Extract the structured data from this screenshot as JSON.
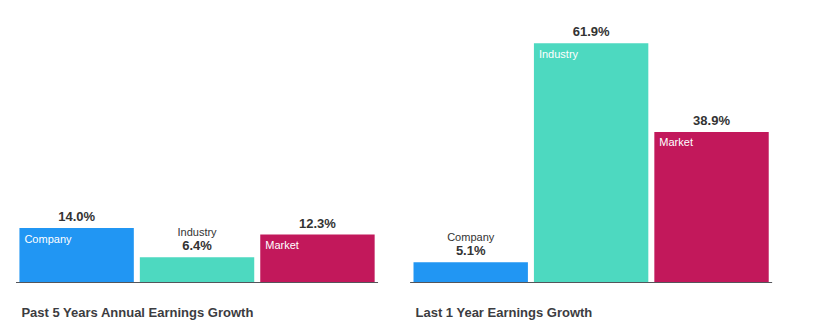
{
  "chart_data": [
    {
      "type": "bar",
      "title": "Past 5 Years Annual Earnings Growth",
      "categories": [
        "Company",
        "Industry",
        "Market"
      ],
      "values": [
        14.0,
        6.4,
        12.3
      ],
      "value_labels": [
        "14.0%",
        "6.4%",
        "12.3%"
      ],
      "colors": [
        "#2196f3",
        "#4dd9c0",
        "#c2185b"
      ],
      "ylim": [
        0,
        70
      ],
      "grid": false,
      "data_labels": true,
      "tick_labels": false
    },
    {
      "type": "bar",
      "title": "Last 1 Year Earnings Growth",
      "categories": [
        "Company",
        "Industry",
        "Market"
      ],
      "values": [
        5.1,
        61.9,
        38.9
      ],
      "value_labels": [
        "5.1%",
        "61.9%",
        "38.9%"
      ],
      "colors": [
        "#2196f3",
        "#4dd9c0",
        "#c2185b"
      ],
      "ylim": [
        0,
        70
      ],
      "grid": false,
      "data_labels": true,
      "tick_labels": false
    }
  ]
}
